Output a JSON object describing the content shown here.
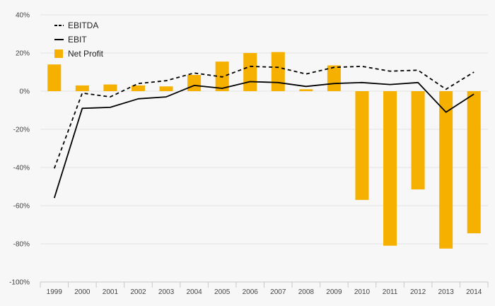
{
  "chart_data": {
    "type": "bar",
    "title": "",
    "xlabel": "",
    "ylabel": "",
    "categories": [
      "1999",
      "2000",
      "2001",
      "2002",
      "2003",
      "2004",
      "2005",
      "2006",
      "2007",
      "2008",
      "2009",
      "2010",
      "2011",
      "2012",
      "2013",
      "2014"
    ],
    "ylim": [
      -100,
      40
    ],
    "y_ticks": [
      40,
      20,
      0,
      -20,
      -40,
      -60,
      -80,
      -100
    ],
    "y_tick_labels": [
      "40%",
      "20%",
      "0%",
      "-20%",
      "-40%",
      "-60%",
      "-80%",
      "-100%"
    ],
    "grid": true,
    "legend": "top-left",
    "series": [
      {
        "name": "EBITDA",
        "type": "line",
        "style": "dashed",
        "color": "#000000",
        "values": [
          -40.5,
          -1,
          -3,
          4,
          5.5,
          9.5,
          7.5,
          13,
          12.5,
          9,
          12.5,
          13,
          10.5,
          11,
          1,
          10
        ]
      },
      {
        "name": "EBIT",
        "type": "line",
        "style": "solid",
        "color": "#000000",
        "values": [
          -56,
          -9,
          -8.5,
          -4,
          -3,
          3,
          1.5,
          5,
          4.5,
          2.5,
          4,
          4.5,
          3.5,
          4.5,
          -11,
          -1.5
        ]
      },
      {
        "name": "Net Profit",
        "type": "bar",
        "color": "#f5b000",
        "values": [
          14,
          3,
          3.5,
          3,
          2.5,
          8.5,
          15.5,
          20,
          20.5,
          1,
          13.5,
          -57,
          -81,
          -51.5,
          -82.5,
          -74.5
        ]
      }
    ]
  }
}
